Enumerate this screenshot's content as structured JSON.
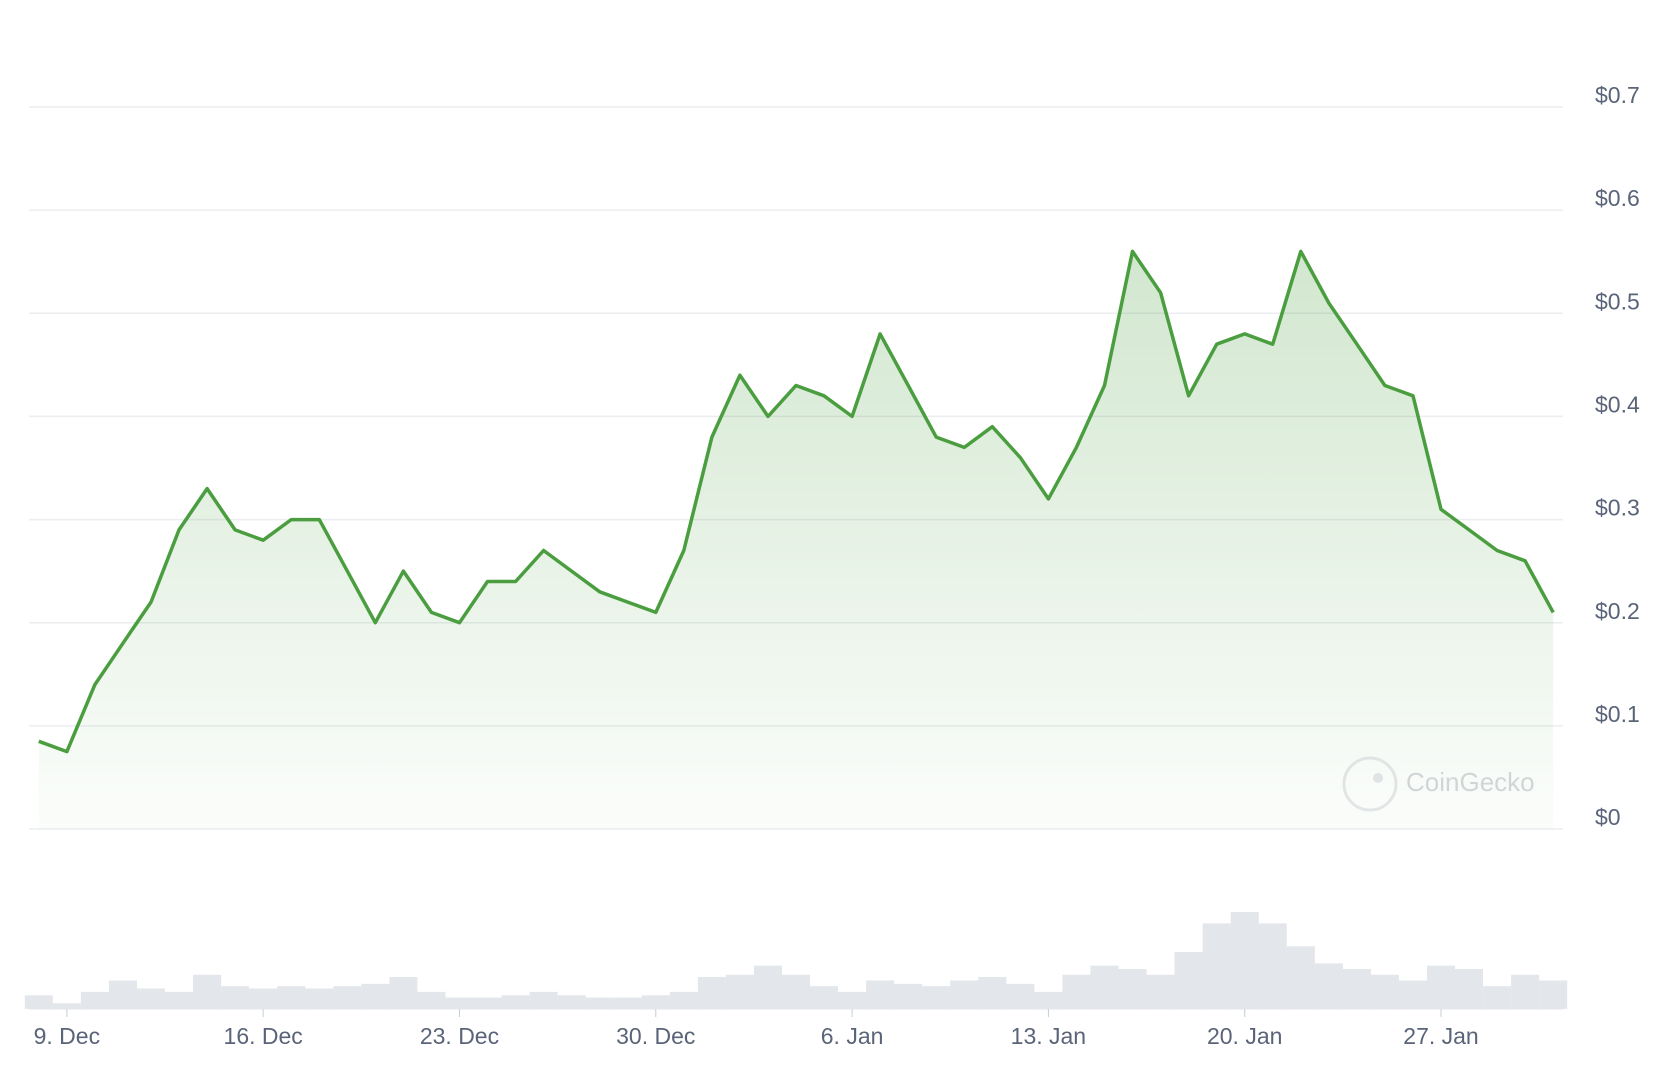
{
  "chart_data": {
    "type": "line",
    "x": [
      "8. Dec",
      "9. Dec",
      "10. Dec",
      "11. Dec",
      "12. Dec",
      "13. Dec",
      "14. Dec",
      "15. Dec",
      "16. Dec",
      "17. Dec",
      "18. Dec",
      "19. Dec",
      "20. Dec",
      "21. Dec",
      "22. Dec",
      "23. Dec",
      "24. Dec",
      "25. Dec",
      "26. Dec",
      "27. Dec",
      "28. Dec",
      "29. Dec",
      "30. Dec",
      "31. Dec",
      "1. Jan",
      "2. Jan",
      "3. Jan",
      "4. Jan",
      "5. Jan",
      "6. Jan",
      "7. Jan",
      "8. Jan",
      "9. Jan",
      "10. Jan",
      "11. Jan",
      "12. Jan",
      "13. Jan",
      "14. Jan",
      "15. Jan",
      "16. Jan",
      "17. Jan",
      "18. Jan",
      "19. Jan",
      "20. Jan",
      "21. Jan",
      "22. Jan",
      "23. Jan",
      "24. Jan",
      "25. Jan",
      "26. Jan",
      "27. Jan",
      "28. Jan",
      "29. Jan",
      "30. Jan",
      "31. Jan"
    ],
    "series": [
      {
        "color": "#4a9e3f",
        "values": [
          0.085,
          0.075,
          0.14,
          0.18,
          0.22,
          0.29,
          0.33,
          0.29,
          0.28,
          0.3,
          0.3,
          0.25,
          0.2,
          0.25,
          0.21,
          0.2,
          0.24,
          0.24,
          0.27,
          0.25,
          0.23,
          0.22,
          0.21,
          0.27,
          0.38,
          0.44,
          0.4,
          0.43,
          0.42,
          0.4,
          0.48,
          0.43,
          0.38,
          0.37,
          0.39,
          0.36,
          0.32,
          0.37,
          0.43,
          0.56,
          0.52,
          0.42,
          0.47,
          0.48,
          0.47,
          0.56,
          0.51,
          0.47,
          0.43,
          0.42,
          0.31,
          0.29,
          0.27,
          0.26,
          0.21
        ]
      }
    ],
    "volume": [
      12,
      5,
      15,
      25,
      18,
      15,
      30,
      20,
      18,
      20,
      18,
      20,
      22,
      28,
      15,
      10,
      10,
      12,
      15,
      12,
      10,
      10,
      12,
      15,
      28,
      30,
      38,
      30,
      20,
      15,
      25,
      22,
      20,
      25,
      28,
      22,
      15,
      30,
      38,
      35,
      30,
      50,
      75,
      85,
      75,
      55,
      40,
      35,
      30,
      25,
      38,
      35,
      20,
      30,
      25
    ],
    "ylim": [
      0,
      0.7
    ],
    "yticks": [
      {
        "value": 0,
        "label": "$0"
      },
      {
        "value": 0.1,
        "label": "$0.1"
      },
      {
        "value": 0.2,
        "label": "$0.2"
      },
      {
        "value": 0.3,
        "label": "$0.3"
      },
      {
        "value": 0.4,
        "label": "$0.4"
      },
      {
        "value": 0.5,
        "label": "$0.5"
      },
      {
        "value": 0.6,
        "label": "$0.6"
      },
      {
        "value": 0.7,
        "label": "$0.7"
      }
    ],
    "xticks": [
      "9. Dec",
      "16. Dec",
      "23. Dec",
      "30. Dec",
      "6. Jan",
      "13. Jan",
      "20. Jan",
      "27. Jan"
    ],
    "grid": true,
    "watermark": "CoinGecko"
  }
}
